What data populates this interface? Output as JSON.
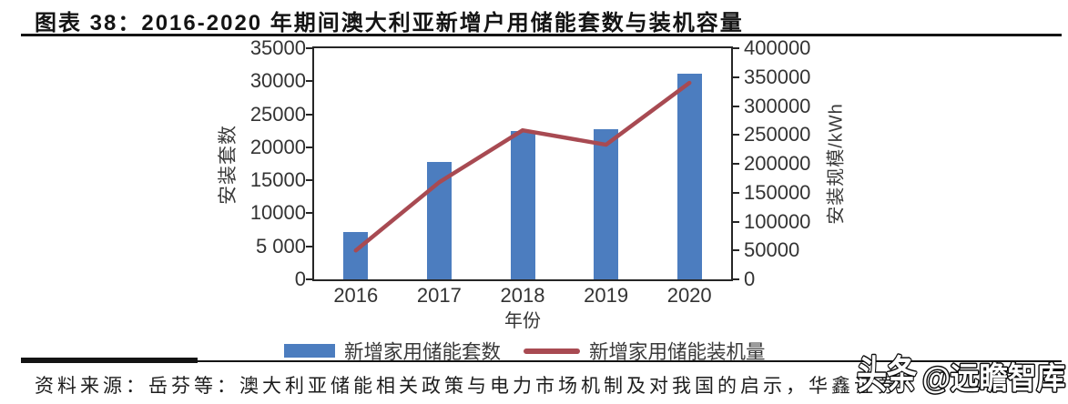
{
  "title": "图表 38：2016-2020 年期间澳大利亚新增户用储能套数与装机容量",
  "source": "资料来源：岳芬等：澳大利亚储能相关政策与电力市场机制及对我国的启示，华鑫证券",
  "watermark": {
    "logo": "头条",
    "handle": "@远瞻智库"
  },
  "chart_data": {
    "type": "bar",
    "categories": [
      "2016",
      "2017",
      "2018",
      "2019",
      "2020"
    ],
    "series": [
      {
        "name": "新增家用储能套数",
        "type": "bar",
        "axis": "left",
        "values": [
          7200,
          17800,
          22500,
          22700,
          31200
        ]
      },
      {
        "name": "新增家用储能装机量",
        "type": "line",
        "axis": "right",
        "values": [
          50000,
          168000,
          258000,
          233000,
          340000
        ]
      }
    ],
    "xlabel": "年份",
    "ylabel_left": "安装套数",
    "ylabel_right": "安装规模/kWh",
    "ylim_left": [
      0,
      35000
    ],
    "ylim_right": [
      0,
      400000
    ],
    "yticks_left": [
      "0",
      "5 000",
      "10000",
      "15000",
      "20000",
      "25000",
      "30000",
      "35000"
    ],
    "yticks_right": [
      "0",
      "50000",
      "100000",
      "150000",
      "200000",
      "250000",
      "300000",
      "350000",
      "400000"
    ],
    "colors": {
      "bar": "#4c7dbf",
      "line": "#a84a52"
    },
    "legend_position": "bottom",
    "grid": false
  }
}
